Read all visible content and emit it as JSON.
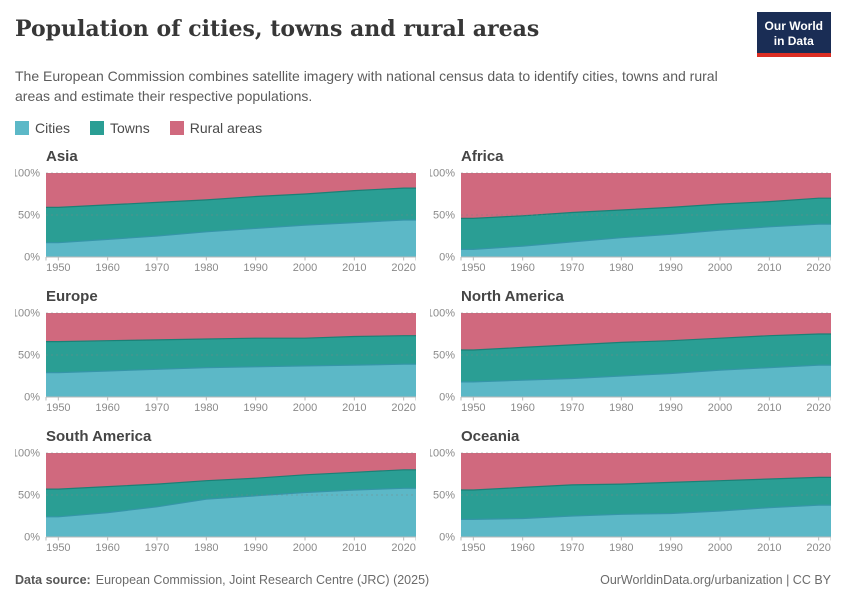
{
  "header": {
    "title": "Population of cities, towns and rural areas",
    "subtitle": "The European Commission combines satellite imagery with national census data to identify cities, towns and rural areas and estimate their respective populations.",
    "logo": {
      "line1": "Our World",
      "line2": "in Data",
      "bg_color": "#1a2d55",
      "accent_color": "#dc2e23"
    }
  },
  "legend": [
    {
      "label": "Cities",
      "color": "#5cb8c7"
    },
    {
      "label": "Towns",
      "color": "#2a9e94"
    },
    {
      "label": "Rural areas",
      "color": "#d0697e"
    }
  ],
  "axes": {
    "y_ticks": [
      {
        "v": 0,
        "label": "0%"
      },
      {
        "v": 50,
        "label": "50%"
      },
      {
        "v": 100,
        "label": "100%"
      }
    ]
  },
  "chart_data": {
    "type": "area",
    "stacked": true,
    "unit": "%",
    "title": "Population of cities, towns and rural areas",
    "series_names": [
      "Cities",
      "Towns",
      "Rural areas"
    ],
    "x": [
      1950,
      1960,
      1970,
      1980,
      1990,
      2000,
      2010,
      2020
    ],
    "x_domain": [
      1947.5,
      2022.5
    ],
    "ylim": [
      0,
      100
    ],
    "grid": "dashed horizontal at 50 and 100",
    "legend_position": "top-left",
    "colors": {
      "cities": "#5cb8c7",
      "towns": "#2a9e94",
      "rural": "#d0697e",
      "cities_line": "#3595a8",
      "towns_line": "#1b8076",
      "axis": "#b8b8b8",
      "gridline": "#808080"
    },
    "panels": [
      {
        "title": "Asia",
        "cities": [
          17,
          21,
          25,
          30,
          34,
          38,
          41,
          44
        ],
        "towns": [
          42,
          41,
          40,
          38,
          38,
          37,
          38,
          38
        ],
        "rural": [
          41,
          38,
          35,
          32,
          28,
          25,
          21,
          18
        ]
      },
      {
        "title": "Africa",
        "cities": [
          9,
          13,
          18,
          23,
          27,
          32,
          36,
          39
        ],
        "towns": [
          37,
          36,
          35,
          33,
          32,
          31,
          30,
          31
        ],
        "rural": [
          54,
          51,
          47,
          44,
          41,
          37,
          34,
          30
        ]
      },
      {
        "title": "Europe",
        "cities": [
          29,
          31,
          33,
          35,
          36,
          37,
          38,
          39
        ],
        "towns": [
          37,
          36,
          35,
          34,
          34,
          33,
          34,
          34
        ],
        "rural": [
          34,
          33,
          32,
          31,
          30,
          30,
          28,
          27
        ]
      },
      {
        "title": "North America",
        "cities": [
          18,
          20,
          22,
          25,
          28,
          32,
          35,
          38
        ],
        "towns": [
          38,
          39,
          40,
          40,
          39,
          38,
          38,
          37
        ],
        "rural": [
          44,
          41,
          38,
          35,
          33,
          30,
          27,
          25
        ]
      },
      {
        "title": "South America",
        "cities": [
          24,
          29,
          36,
          45,
          49,
          53,
          56,
          58
        ],
        "towns": [
          33,
          31,
          27,
          22,
          21,
          21,
          21,
          22
        ],
        "rural": [
          43,
          40,
          37,
          33,
          30,
          26,
          23,
          20
        ]
      },
      {
        "title": "Oceania",
        "cities": [
          21,
          22,
          25,
          27,
          28,
          31,
          35,
          38
        ],
        "towns": [
          35,
          37,
          37,
          36,
          37,
          36,
          34,
          33
        ],
        "rural": [
          44,
          41,
          38,
          37,
          35,
          33,
          31,
          29
        ]
      }
    ]
  },
  "footer": {
    "source_label": "Data source:",
    "source_text": "European Commission, Joint Research Centre (JRC) (2025)",
    "right_text": "OurWorldinData.org/urbanization | CC BY"
  }
}
